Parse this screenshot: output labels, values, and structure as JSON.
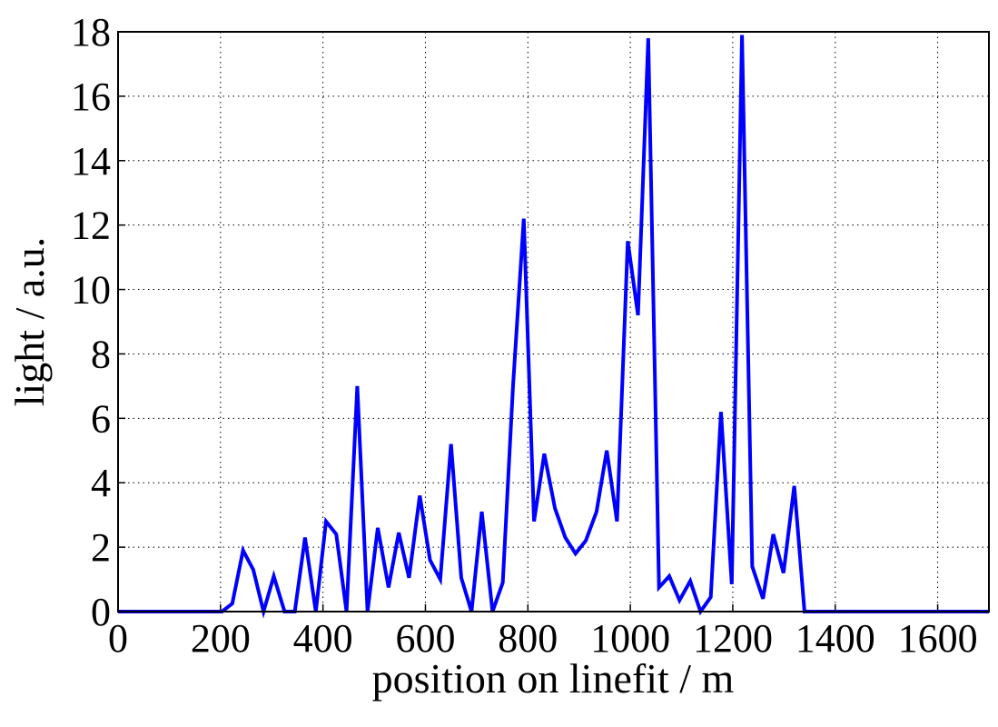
{
  "chart_data": {
    "type": "line",
    "x_label": "position on linefit / m",
    "y_label": "light / a.u.",
    "x": [
      0,
      203,
      223,
      244,
      264,
      284,
      304,
      325,
      345,
      365,
      386,
      406,
      426,
      446,
      467,
      487,
      507,
      528,
      548,
      568,
      589,
      609,
      629,
      650,
      670,
      690,
      710,
      731,
      751,
      771,
      792,
      812,
      832,
      853,
      873,
      893,
      913,
      934,
      954,
      974,
      995,
      1015,
      1035,
      1056,
      1076,
      1096,
      1117,
      1137,
      1157,
      1177,
      1198,
      1218,
      1238,
      1259,
      1279,
      1299,
      1320,
      1340,
      1700
    ],
    "series": [
      {
        "color": "#0000ff",
        "values": [
          0,
          0,
          0.25,
          1.9,
          1.3,
          0,
          1.1,
          0,
          0,
          2.3,
          0,
          2.8,
          2.4,
          0,
          7.0,
          0,
          2.6,
          0.75,
          2.45,
          1.05,
          3.6,
          1.6,
          1.0,
          5.2,
          1.05,
          0,
          3.1,
          0,
          0.9,
          7.0,
          12.2,
          2.8,
          4.9,
          3.2,
          2.3,
          1.8,
          2.2,
          3.1,
          5.0,
          2.8,
          11.5,
          9.2,
          17.8,
          0.75,
          1.1,
          0.35,
          0.95,
          0,
          0.45,
          6.2,
          0.85,
          17.9,
          1.4,
          0.4,
          2.4,
          1.2,
          3.9,
          0,
          0
        ]
      }
    ],
    "xlim": [
      0,
      1700
    ],
    "xticks": [
      0,
      200,
      400,
      600,
      800,
      1000,
      1200,
      1400,
      1600
    ],
    "ylim": [
      0,
      18
    ],
    "yticks": [
      0,
      2,
      4,
      6,
      8,
      10,
      12,
      14,
      16,
      18
    ],
    "grid": true
  }
}
